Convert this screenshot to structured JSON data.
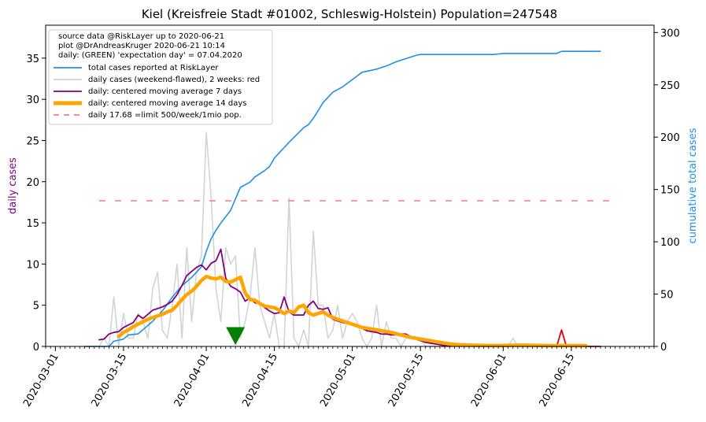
{
  "chart_data": {
    "type": "line",
    "title": "Kiel (Kreisfreie Stadt #01002, Schleswig-Holstein) Population=247548",
    "ylabel": "daily cases",
    "y2label": "cumulative total cases",
    "xlim": [
      "2020-02-28",
      "2020-07-02"
    ],
    "ylim": [
      0,
      39
    ],
    "y2lim": [
      0,
      307
    ],
    "yticks": [
      0,
      5,
      10,
      15,
      20,
      25,
      30,
      35
    ],
    "y2ticks": [
      0,
      50,
      100,
      150,
      200,
      250,
      300
    ],
    "xticks": [
      "2020-03-01",
      "2020-03-15",
      "2020-04-01",
      "2020-04-15",
      "2020-05-01",
      "2020-05-15",
      "2020-06-01",
      "2020-06-15"
    ],
    "legend_position": "top-left",
    "legend_header": [
      "source data @RiskLayer up to 2020-06-21",
      "plot @DrAndreasKruger 2020-06-21 10:14",
      "daily: (GREEN) 'expectation day' = 07.04.2020"
    ],
    "series": [
      {
        "name": "total cases reported at RiskLayer",
        "axis": "right",
        "color": "#1f8fe8",
        "x": [
          "2020-03-07",
          "2020-03-12",
          "2020-03-13",
          "2020-03-15",
          "2020-03-16",
          "2020-03-18",
          "2020-03-19",
          "2020-03-21",
          "2020-03-23",
          "2020-03-25",
          "2020-03-27",
          "2020-03-29",
          "2020-03-31",
          "2020-04-01",
          "2020-04-02",
          "2020-04-03",
          "2020-04-04",
          "2020-04-06",
          "2020-04-08",
          "2020-04-10",
          "2020-04-11",
          "2020-04-12",
          "2020-04-13",
          "2020-04-14",
          "2020-04-15",
          "2020-04-16",
          "2020-04-17",
          "2020-04-18",
          "2020-04-21",
          "2020-04-22",
          "2020-04-23",
          "2020-04-25",
          "2020-04-27",
          "2020-04-29",
          "2020-05-01",
          "2020-05-03",
          "2020-05-06",
          "2020-05-08",
          "2020-05-10",
          "2020-05-12",
          "2020-05-14",
          "2020-05-15",
          "2020-05-20",
          "2020-05-25",
          "2020-05-30",
          "2020-06-01",
          "2020-06-05",
          "2020-06-10",
          "2020-06-12",
          "2020-06-13",
          "2020-06-21"
        ],
        "y": [
          0,
          0,
          5,
          7,
          11,
          12,
          16,
          24,
          34,
          47,
          58,
          66,
          76,
          91,
          103,
          111,
          118,
          130,
          152,
          157,
          162,
          165,
          168,
          172,
          180,
          185,
          190,
          195,
          209,
          212,
          218,
          233,
          243,
          248,
          255,
          262,
          265,
          268,
          272,
          275,
          278,
          279,
          279,
          279,
          279,
          280,
          280,
          280,
          280,
          282,
          282
        ]
      },
      {
        "name": "daily cases (weekend-flawed), 2 weeks: red",
        "axis": "left",
        "color": "#d3d3d3",
        "x": [
          "2020-03-07",
          "2020-03-08",
          "2020-03-09",
          "2020-03-10",
          "2020-03-11",
          "2020-03-12",
          "2020-03-13",
          "2020-03-14",
          "2020-03-15",
          "2020-03-16",
          "2020-03-17",
          "2020-03-18",
          "2020-03-19",
          "2020-03-20",
          "2020-03-21",
          "2020-03-22",
          "2020-03-23",
          "2020-03-24",
          "2020-03-25",
          "2020-03-26",
          "2020-03-27",
          "2020-03-28",
          "2020-03-29",
          "2020-03-30",
          "2020-03-31",
          "2020-04-01",
          "2020-04-02",
          "2020-04-03",
          "2020-04-04",
          "2020-04-05",
          "2020-04-06",
          "2020-04-07",
          "2020-04-08",
          "2020-04-09",
          "2020-04-10",
          "2020-04-11",
          "2020-04-12",
          "2020-04-13",
          "2020-04-14",
          "2020-04-15",
          "2020-04-16",
          "2020-04-17",
          "2020-04-18",
          "2020-04-19",
          "2020-04-20",
          "2020-04-21",
          "2020-04-22",
          "2020-04-23",
          "2020-04-24",
          "2020-04-25",
          "2020-04-26",
          "2020-04-27",
          "2020-04-28",
          "2020-04-29",
          "2020-04-30",
          "2020-05-01",
          "2020-05-02",
          "2020-05-03",
          "2020-05-04",
          "2020-05-05",
          "2020-05-06",
          "2020-05-07",
          "2020-05-08",
          "2020-05-09",
          "2020-05-10",
          "2020-05-11",
          "2020-05-12",
          "2020-05-13",
          "2020-05-14",
          "2020-05-15",
          "2020-05-16",
          "2020-05-17",
          "2020-05-18",
          "2020-05-19",
          "2020-05-20",
          "2020-05-21",
          "2020-05-22",
          "2020-05-23",
          "2020-05-24",
          "2020-05-25",
          "2020-05-26",
          "2020-05-27",
          "2020-05-28",
          "2020-05-29",
          "2020-05-30",
          "2020-05-31",
          "2020-06-01",
          "2020-06-02",
          "2020-06-03",
          "2020-06-04",
          "2020-06-05",
          "2020-06-06",
          "2020-06-07"
        ],
        "y": [
          0,
          0,
          0,
          0,
          1,
          0,
          6,
          0,
          4,
          1,
          1,
          4,
          3,
          1,
          7,
          9,
          2,
          1,
          5,
          10,
          1,
          12,
          3,
          9,
          11,
          26,
          18,
          7,
          3,
          12,
          10,
          11,
          1,
          3,
          6,
          12,
          5,
          3,
          1,
          4,
          0,
          0,
          18,
          1,
          0,
          2,
          0,
          14,
          5,
          5,
          1,
          2,
          5,
          1,
          3,
          4,
          3,
          1,
          0,
          1,
          5,
          0,
          3,
          1,
          1,
          0,
          1,
          1,
          1,
          1,
          0,
          0,
          0,
          0,
          0,
          0,
          0,
          0,
          0,
          0,
          0,
          0,
          0,
          0,
          0,
          0,
          0,
          0,
          1,
          0,
          0,
          0,
          0
        ]
      },
      {
        "name": "daily cases, last 2 weeks (red)",
        "axis": "left",
        "color": "#e00000",
        "x": [
          "2020-06-08",
          "2020-06-09",
          "2020-06-10",
          "2020-06-11",
          "2020-06-12",
          "2020-06-13",
          "2020-06-14",
          "2020-06-15",
          "2020-06-16",
          "2020-06-17",
          "2020-06-18",
          "2020-06-19",
          "2020-06-20",
          "2020-06-21"
        ],
        "y": [
          0,
          0,
          0,
          0,
          0,
          2,
          0,
          0,
          0,
          0,
          0,
          0,
          0,
          0
        ]
      },
      {
        "name": "daily: centered moving average 7 days",
        "axis": "left",
        "color": "#800080",
        "x": [
          "2020-03-10",
          "2020-03-11",
          "2020-03-12",
          "2020-03-13",
          "2020-03-14",
          "2020-03-15",
          "2020-03-16",
          "2020-03-17",
          "2020-03-18",
          "2020-03-19",
          "2020-03-20",
          "2020-03-21",
          "2020-03-22",
          "2020-03-23",
          "2020-03-24",
          "2020-03-25",
          "2020-03-26",
          "2020-03-27",
          "2020-03-28",
          "2020-03-29",
          "2020-03-30",
          "2020-03-31",
          "2020-04-01",
          "2020-04-02",
          "2020-04-03",
          "2020-04-04",
          "2020-04-05",
          "2020-04-06",
          "2020-04-07",
          "2020-04-08",
          "2020-04-09",
          "2020-04-10",
          "2020-04-11",
          "2020-04-12",
          "2020-04-13",
          "2020-04-14",
          "2020-04-15",
          "2020-04-16",
          "2020-04-17",
          "2020-04-18",
          "2020-04-19",
          "2020-04-20",
          "2020-04-21",
          "2020-04-22",
          "2020-04-23",
          "2020-04-24",
          "2020-04-25",
          "2020-04-26",
          "2020-04-27",
          "2020-04-28",
          "2020-04-29",
          "2020-04-30",
          "2020-05-01",
          "2020-05-02",
          "2020-05-03",
          "2020-05-04",
          "2020-05-05",
          "2020-05-06",
          "2020-05-07",
          "2020-05-08",
          "2020-05-09",
          "2020-05-10",
          "2020-05-11",
          "2020-05-12",
          "2020-05-13",
          "2020-05-14",
          "2020-05-15",
          "2020-05-16",
          "2020-05-17",
          "2020-05-18",
          "2020-05-19",
          "2020-05-20",
          "2020-05-25",
          "2020-05-30",
          "2020-06-05",
          "2020-06-10",
          "2020-06-15",
          "2020-06-18"
        ],
        "y": [
          0.8,
          0.9,
          1.5,
          1.7,
          1.8,
          2.3,
          2.6,
          2.9,
          3.8,
          3.4,
          3.9,
          4.4,
          4.6,
          4.8,
          5.1,
          5.5,
          6.3,
          7.4,
          8.6,
          9.1,
          9.6,
          9.9,
          9.3,
          10.1,
          10.4,
          11.8,
          8.3,
          7.3,
          7.0,
          6.6,
          5.5,
          5.9,
          5.3,
          5.2,
          4.7,
          4.3,
          4.0,
          4.1,
          6.0,
          4.2,
          3.8,
          3.8,
          3.8,
          5.0,
          5.5,
          4.6,
          4.5,
          4.7,
          3.3,
          3.1,
          2.9,
          2.8,
          2.6,
          2.5,
          2.2,
          1.9,
          1.8,
          1.7,
          1.5,
          1.5,
          1.4,
          1.4,
          1.5,
          1.5,
          1.2,
          0.9,
          0.7,
          0.5,
          0.4,
          0.3,
          0.2,
          0.1,
          0.1,
          0.1,
          0.1,
          0.1,
          0.1,
          0.1
        ]
      },
      {
        "name": "daily: centered moving average 14 days",
        "axis": "left",
        "color": "#ffa500",
        "x": [
          "2020-03-14",
          "2020-03-15",
          "2020-03-16",
          "2020-03-17",
          "2020-03-18",
          "2020-03-19",
          "2020-03-20",
          "2020-03-21",
          "2020-03-22",
          "2020-03-23",
          "2020-03-24",
          "2020-03-25",
          "2020-03-26",
          "2020-03-27",
          "2020-03-28",
          "2020-03-29",
          "2020-03-30",
          "2020-03-31",
          "2020-04-01",
          "2020-04-02",
          "2020-04-03",
          "2020-04-04",
          "2020-04-05",
          "2020-04-06",
          "2020-04-07",
          "2020-04-08",
          "2020-04-09",
          "2020-04-10",
          "2020-04-11",
          "2020-04-12",
          "2020-04-13",
          "2020-04-14",
          "2020-04-15",
          "2020-04-16",
          "2020-04-17",
          "2020-04-18",
          "2020-04-19",
          "2020-04-20",
          "2020-04-21",
          "2020-04-22",
          "2020-04-23",
          "2020-04-24",
          "2020-04-25",
          "2020-04-26",
          "2020-04-27",
          "2020-04-28",
          "2020-04-29",
          "2020-04-30",
          "2020-05-01",
          "2020-05-02",
          "2020-05-03",
          "2020-05-05",
          "2020-05-07",
          "2020-05-09",
          "2020-05-11",
          "2020-05-13",
          "2020-05-15",
          "2020-05-17",
          "2020-05-19",
          "2020-05-21",
          "2020-05-23",
          "2020-05-25",
          "2020-05-30",
          "2020-06-05",
          "2020-06-10",
          "2020-06-15",
          "2020-06-18"
        ],
        "y": [
          1.2,
          1.7,
          2.0,
          2.4,
          2.7,
          3.0,
          3.3,
          3.5,
          3.7,
          3.9,
          4.2,
          4.4,
          5.0,
          5.7,
          6.3,
          6.7,
          7.3,
          8.0,
          8.5,
          8.3,
          8.2,
          8.4,
          7.9,
          7.8,
          8.1,
          8.4,
          6.5,
          5.7,
          5.6,
          5.2,
          4.9,
          4.8,
          4.7,
          4.4,
          4.0,
          4.3,
          4.1,
          4.8,
          5.0,
          4.1,
          3.8,
          4.0,
          4.2,
          3.8,
          3.5,
          3.3,
          3.1,
          2.9,
          2.7,
          2.5,
          2.3,
          2.1,
          1.9,
          1.7,
          1.4,
          1.1,
          0.9,
          0.7,
          0.5,
          0.3,
          0.2,
          0.15,
          0.1,
          0.15,
          0.1,
          0.1,
          0.1
        ]
      },
      {
        "name": "daily 17.68 =limit 500/week/1mio pop.",
        "axis": "left",
        "color": "#f08080",
        "x": [
          "2020-03-10",
          "2020-06-23"
        ],
        "y": [
          17.68,
          17.68
        ]
      }
    ],
    "markers": [
      {
        "name": "expectation day",
        "date": "2020-04-07",
        "y": 1.2,
        "color": "#008000",
        "shape": "triangle-down"
      }
    ]
  }
}
